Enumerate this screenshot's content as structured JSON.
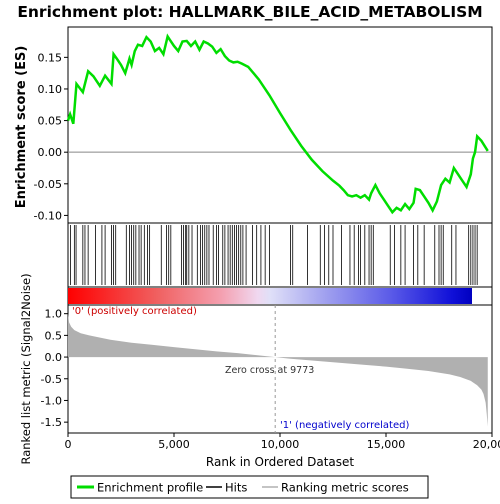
{
  "title": "Enrichment plot: HALLMARK_BILE_ACID_METABOLISM",
  "colors": {
    "enrichment_line": "#00dd00",
    "hits": "#000000",
    "metric_fill": "#b0b0b0",
    "axis": "#000000",
    "zero_line": "#888888",
    "pos_label": "#cc0000",
    "neg_label": "#0000cc"
  },
  "legend": {
    "items": [
      {
        "label": "Enrichment profile",
        "color": "#00dd00",
        "icon": "green-line"
      },
      {
        "label": "Hits",
        "color": "#000000",
        "icon": "black-line"
      },
      {
        "label": "Ranking metric scores",
        "color": "#b0b0b0",
        "icon": "gray-line"
      }
    ]
  },
  "annotations": {
    "pos_corr": "'0' (positively correlated)",
    "neg_corr": "'1' (negatively correlated)",
    "zero_cross": "Zero cross at 9773"
  },
  "chart_data": [
    {
      "type": "line",
      "name": "enrichment_profile",
      "ylabel": "Enrichment score (ES)",
      "xlim": [
        0,
        20000
      ],
      "ylim": [
        -0.112,
        0.198
      ],
      "yticks": [
        -0.1,
        -0.05,
        0.0,
        0.05,
        0.1,
        0.15
      ],
      "ytick_labels": [
        "-0.10",
        "-0.05",
        "0.00",
        "0.05",
        "0.10",
        "0.15"
      ],
      "x": [
        0,
        100,
        250,
        400,
        700,
        950,
        1200,
        1500,
        1750,
        2050,
        2150,
        2300,
        2500,
        2700,
        2900,
        3000,
        3150,
        3300,
        3500,
        3700,
        3900,
        4100,
        4300,
        4500,
        4700,
        4800,
        5000,
        5200,
        5400,
        5600,
        5800,
        6000,
        6200,
        6400,
        6600,
        6800,
        7000,
        7200,
        7400,
        7600,
        7800,
        8000,
        8200,
        8500,
        9000,
        9500,
        10000,
        10500,
        11000,
        11500,
        12000,
        12500,
        12800,
        13000,
        13200,
        13400,
        13600,
        13800,
        14000,
        14200,
        14300,
        14500,
        14700,
        14900,
        15100,
        15300,
        15500,
        15700,
        15900,
        16100,
        16300,
        16400,
        16600,
        16800,
        17000,
        17200,
        17400,
        17600,
        17800,
        18000,
        18200,
        18400,
        18600,
        18800,
        19000,
        19100,
        19200,
        19300,
        19500,
        19800
      ],
      "y": [
        0.05,
        0.06,
        0.045,
        0.108,
        0.095,
        0.128,
        0.12,
        0.105,
        0.121,
        0.108,
        0.155,
        0.148,
        0.138,
        0.125,
        0.148,
        0.138,
        0.16,
        0.17,
        0.168,
        0.182,
        0.175,
        0.16,
        0.165,
        0.155,
        0.183,
        0.178,
        0.168,
        0.16,
        0.175,
        0.176,
        0.168,
        0.175,
        0.162,
        0.175,
        0.172,
        0.167,
        0.157,
        0.163,
        0.152,
        0.145,
        0.142,
        0.143,
        0.14,
        0.135,
        0.115,
        0.09,
        0.062,
        0.035,
        0.01,
        -0.012,
        -0.03,
        -0.045,
        -0.053,
        -0.06,
        -0.068,
        -0.07,
        -0.068,
        -0.072,
        -0.068,
        -0.075,
        -0.065,
        -0.052,
        -0.065,
        -0.075,
        -0.085,
        -0.095,
        -0.088,
        -0.092,
        -0.082,
        -0.09,
        -0.08,
        -0.058,
        -0.06,
        -0.07,
        -0.08,
        -0.092,
        -0.078,
        -0.052,
        -0.042,
        -0.048,
        -0.025,
        -0.035,
        -0.045,
        -0.055,
        -0.035,
        -0.01,
        0.0,
        0.025,
        0.018,
        0.002
      ]
    },
    {
      "type": "scatter",
      "name": "hits",
      "xlim": [
        0,
        20000
      ],
      "x": [
        120,
        300,
        380,
        700,
        800,
        950,
        1300,
        1600,
        1750,
        2050,
        2150,
        2250,
        2750,
        2900,
        3000,
        3100,
        3200,
        3350,
        3450,
        3600,
        3750,
        3850,
        4400,
        4650,
        4750,
        4850,
        5350,
        5450,
        5550,
        5600,
        5700,
        5850,
        6100,
        6250,
        6350,
        6450,
        6550,
        6650,
        6850,
        7000,
        7100,
        7300,
        7400,
        7550,
        7650,
        7750,
        7850,
        7950,
        8050,
        8150,
        8250,
        8400,
        8700,
        8900,
        9100,
        9300,
        9500,
        10500,
        10600,
        11300,
        11900,
        12100,
        12300,
        12500,
        12900,
        13300,
        13500,
        13700,
        13800,
        14000,
        14200,
        14300,
        14400,
        15200,
        15400,
        15700,
        15900,
        16300,
        16500,
        16800,
        17300,
        17500,
        17600,
        17700,
        18100,
        18300,
        18900,
        19000,
        19100,
        19200,
        19300
      ]
    },
    {
      "type": "area",
      "name": "ranked_list_metric",
      "ylabel": "Ranked list metric (Signal2Noise)",
      "xlabel": "Rank in Ordered Dataset",
      "xlim": [
        0,
        20000
      ],
      "ylim": [
        -1.75,
        1.2
      ],
      "xticks": [
        0,
        5000,
        10000,
        15000,
        20000
      ],
      "xtick_labels": [
        "0",
        "5,000",
        "10,000",
        "15,000",
        "20,000"
      ],
      "yticks": [
        -1.5,
        -1.0,
        -0.5,
        0.0,
        0.5,
        1.0
      ],
      "ytick_labels": [
        "-1.5",
        "-1.0",
        "-0.5",
        "0.0",
        "0.5",
        "1.0"
      ],
      "zero_cross": 9773,
      "x": [
        0,
        50,
        150,
        300,
        600,
        1000,
        2000,
        3000,
        4000,
        5000,
        6000,
        7000,
        8000,
        9000,
        9773,
        10500,
        11000,
        12000,
        13000,
        14000,
        15000,
        16000,
        17000,
        18000,
        18500,
        19000,
        19300,
        19500,
        19600,
        19700,
        19750,
        19800
      ],
      "y": [
        1.0,
        0.8,
        0.7,
        0.62,
        0.55,
        0.5,
        0.4,
        0.33,
        0.28,
        0.23,
        0.18,
        0.13,
        0.09,
        0.04,
        0.0,
        -0.04,
        -0.06,
        -0.1,
        -0.14,
        -0.18,
        -0.22,
        -0.27,
        -0.32,
        -0.4,
        -0.46,
        -0.55,
        -0.65,
        -0.75,
        -0.85,
        -1.05,
        -1.3,
        -1.6
      ]
    }
  ]
}
